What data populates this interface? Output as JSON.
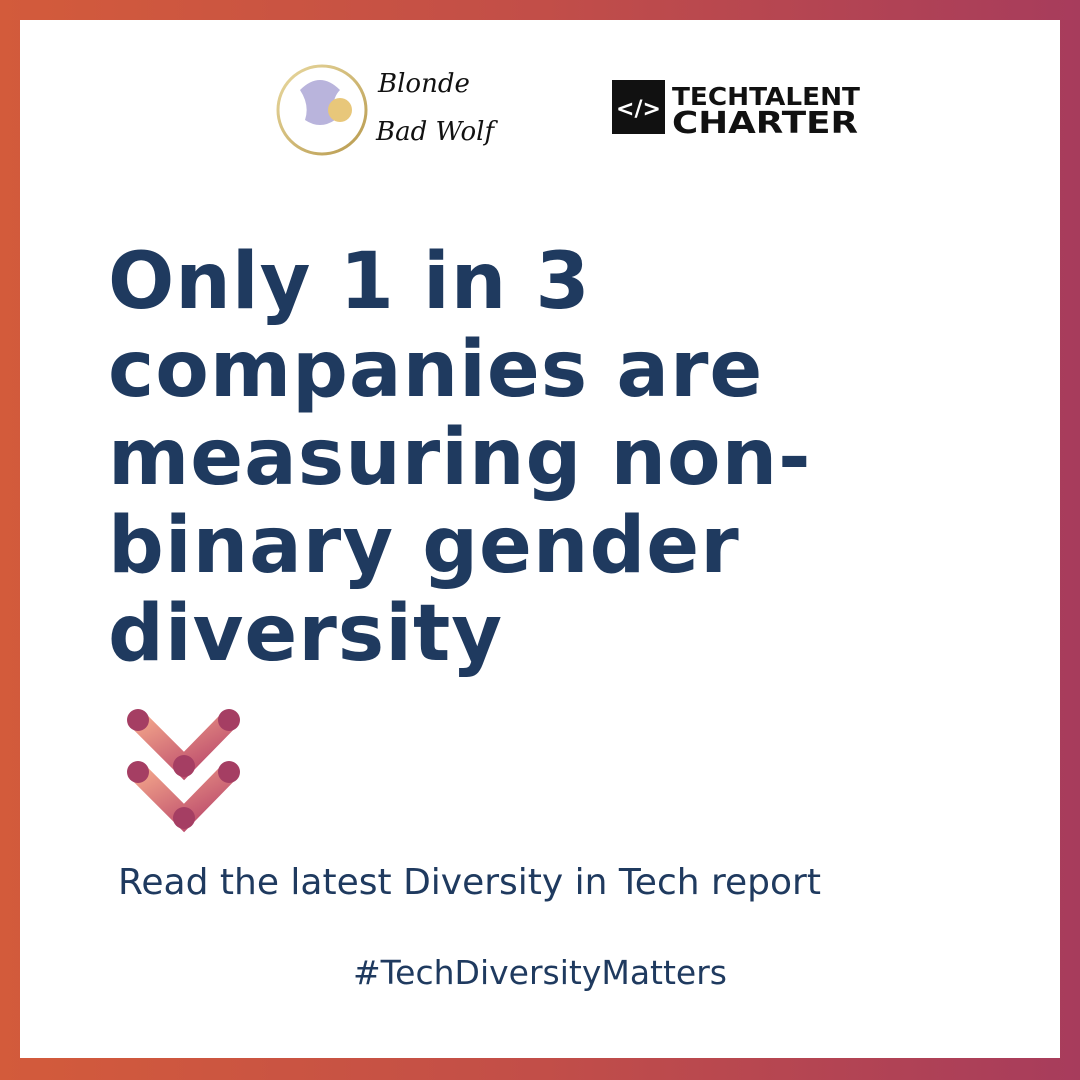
{
  "logos": {
    "wolf": {
      "line1": "Blonde",
      "line2": "Bad Wolf"
    },
    "charter": {
      "icon": "</>",
      "line1": "TECHTALENT",
      "line2": "CHARTER"
    }
  },
  "headline": {
    "lines": [
      "Only 1 in 3",
      "companies are",
      "measuring non-",
      "binary gender",
      "diversity"
    ]
  },
  "body": "Read the latest Diversity in Tech report",
  "hashtag": "#TechDiversityMatters"
}
